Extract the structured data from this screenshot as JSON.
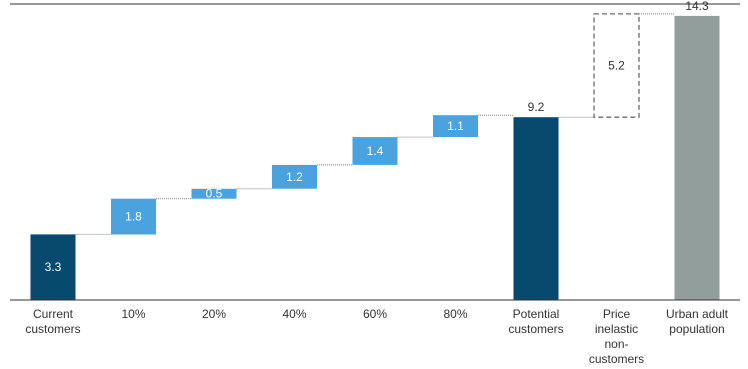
{
  "chart_data": {
    "type": "bar",
    "subtype": "waterfall",
    "categories": [
      [
        "Current",
        "customers"
      ],
      [
        "10%"
      ],
      [
        "20%"
      ],
      [
        "40%"
      ],
      [
        "60%"
      ],
      [
        "80%"
      ],
      [
        "Potential",
        "customers"
      ],
      [
        "Price",
        "inelastic",
        "non-",
        "customers"
      ],
      [
        "Urban adult",
        "population"
      ]
    ],
    "bars": [
      {
        "kind": "total",
        "base": 0,
        "value": 3.3,
        "label": "3.3"
      },
      {
        "kind": "step",
        "base": 3.3,
        "value": 1.8,
        "label": "1.8"
      },
      {
        "kind": "step",
        "base": 5.1,
        "value": 0.5,
        "label": "0.5"
      },
      {
        "kind": "step",
        "base": 5.6,
        "value": 1.2,
        "label": "1.2"
      },
      {
        "kind": "step",
        "base": 6.8,
        "value": 1.4,
        "label": "1.4"
      },
      {
        "kind": "step",
        "base": 8.2,
        "value": 1.1,
        "label": "1.1"
      },
      {
        "kind": "total",
        "base": 0,
        "value": 9.2,
        "label": "9.2"
      },
      {
        "kind": "dashed",
        "base": 9.2,
        "value": 5.2,
        "label": "5.2"
      },
      {
        "kind": "total_grey",
        "base": 0,
        "value": 14.3,
        "label": "14.3"
      }
    ],
    "ylim": [
      0,
      14.9
    ],
    "grid": false,
    "colors": {
      "total": "#074a6e",
      "step": "#4aa3df",
      "total_grey": "#929e9b",
      "dashed_border": "#6b6b6b",
      "axis": "#333333",
      "connector": "#8a8a8a"
    }
  }
}
